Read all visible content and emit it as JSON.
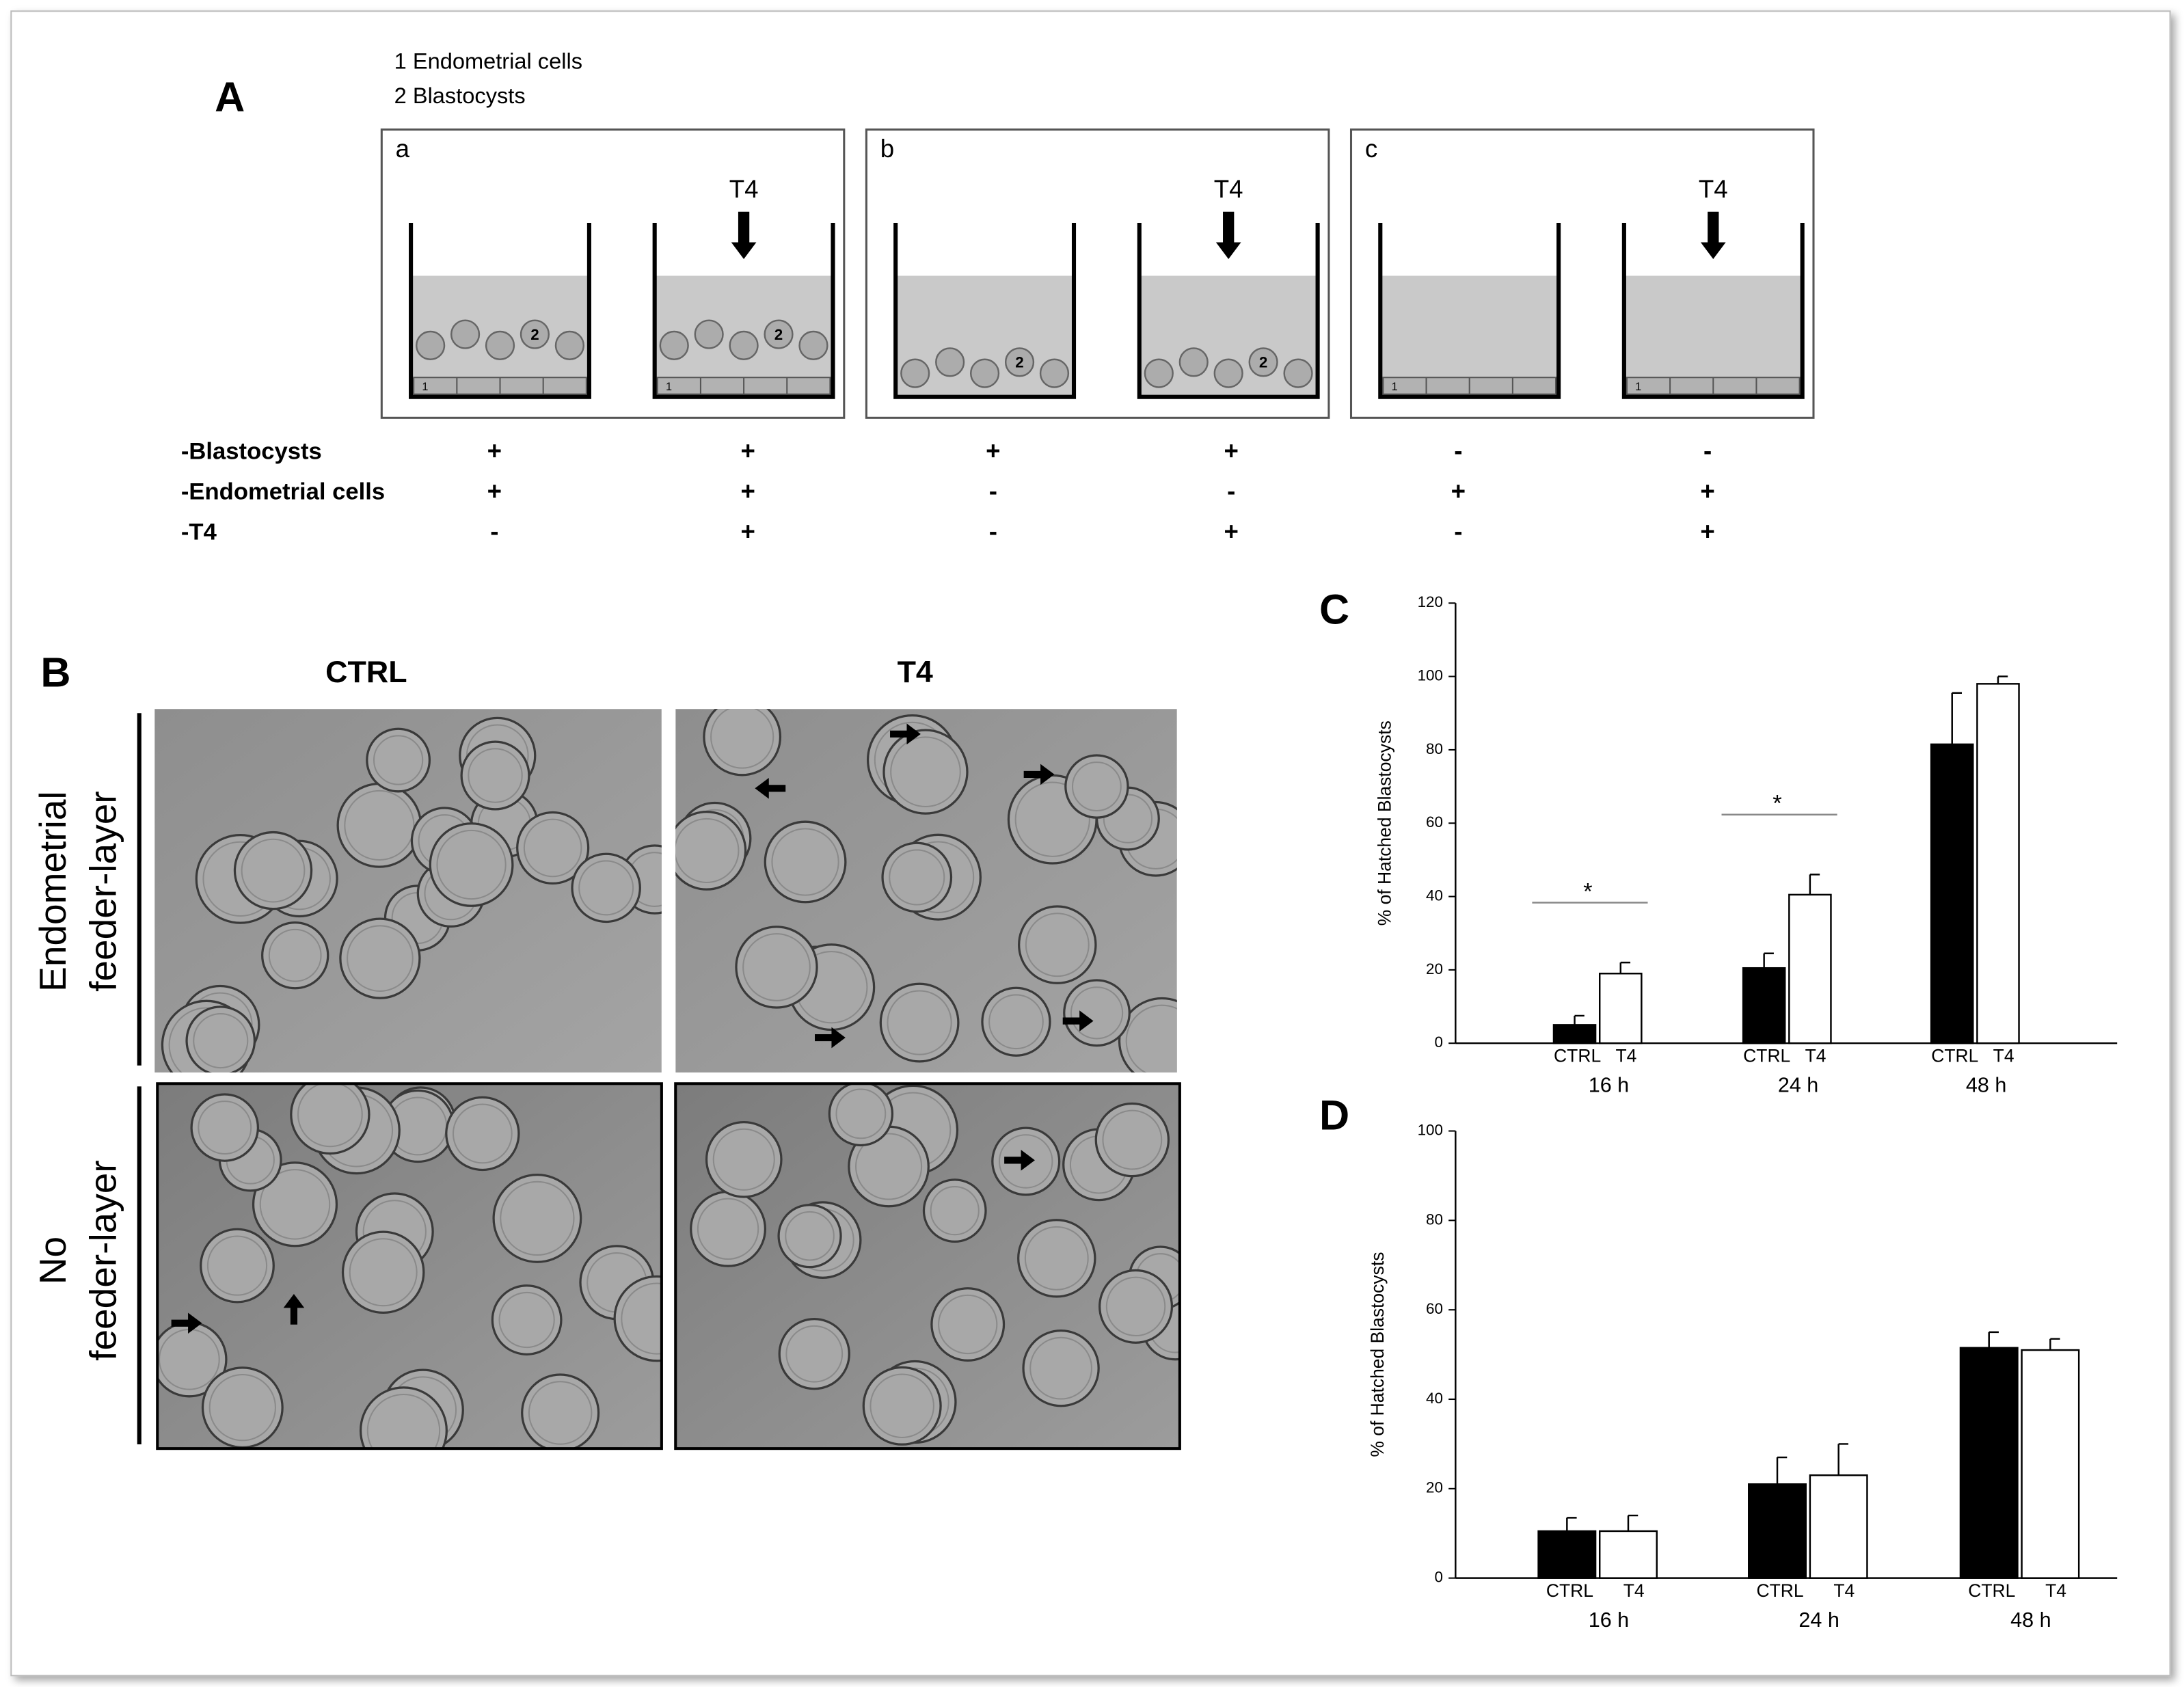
{
  "panel_a": {
    "label": "A",
    "legend": [
      "1 Endometrial cells",
      "2 Blastocysts"
    ],
    "subpanels": [
      {
        "label": "a",
        "treatment": "T4",
        "marks": [
          "1",
          "2"
        ]
      },
      {
        "label": "b",
        "treatment": "T4",
        "marks": [
          "2"
        ]
      },
      {
        "label": "c",
        "treatment": "T4",
        "marks": [
          "1"
        ]
      }
    ],
    "table": {
      "rows": [
        {
          "name": "-Blastocysts",
          "cells": [
            "+",
            "+",
            "+",
            "+",
            "-",
            "-"
          ]
        },
        {
          "name": "-Endometrial cells",
          "cells": [
            "+",
            "+",
            "-",
            "-",
            "+",
            "+"
          ]
        },
        {
          "name": "-T4",
          "cells": [
            "-",
            "+",
            "-",
            "+",
            "-",
            "+"
          ]
        }
      ]
    }
  },
  "panel_b": {
    "label": "B",
    "columns": [
      "CTRL",
      "T4"
    ],
    "rows": [
      {
        "label": [
          "Endometrial",
          "feeder-layer"
        ]
      },
      {
        "label": [
          "No",
          "feeder-layer"
        ]
      }
    ]
  },
  "chart_data": [
    {
      "type": "bar",
      "title": "C",
      "y_label": "% of Hatched Blastocysts",
      "categories": [
        "16 h",
        "24 h",
        "48 h"
      ],
      "series": [
        {
          "name": "CTRL",
          "color": "#000000",
          "values": [
            5,
            20.5,
            81.5
          ],
          "errors": [
            2.5,
            4,
            14
          ]
        },
        {
          "name": "T4",
          "color": "#ffffff",
          "values": [
            19,
            40.5,
            98
          ],
          "errors": [
            3,
            5.5,
            2
          ]
        }
      ],
      "significance": [
        "*",
        "*",
        null
      ],
      "ylim": [
        0,
        120
      ],
      "yticks": [
        0,
        20,
        40,
        60,
        80,
        100,
        120
      ]
    },
    {
      "type": "bar",
      "title": "D",
      "y_label": "% of Hatched Blastocysts",
      "categories": [
        "16 h",
        "24 h",
        "48 h"
      ],
      "series": [
        {
          "name": "CTRL",
          "color": "#000000",
          "values": [
            10.5,
            21,
            51.5
          ],
          "errors": [
            3,
            6,
            3.5
          ]
        },
        {
          "name": "T4",
          "color": "#ffffff",
          "values": [
            10.5,
            23,
            51
          ],
          "errors": [
            3.5,
            7,
            2.5
          ]
        }
      ],
      "significance": [
        null,
        null,
        null
      ],
      "ylim": [
        0,
        100
      ],
      "yticks": [
        0,
        20,
        40,
        60,
        80,
        100
      ]
    }
  ]
}
